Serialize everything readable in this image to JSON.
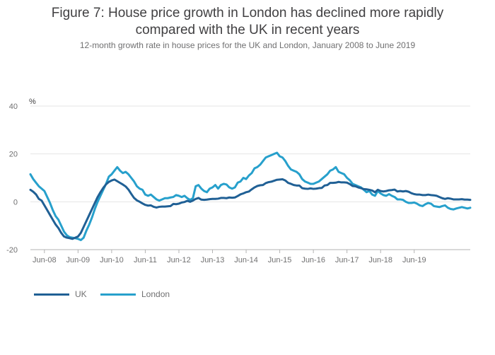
{
  "title_line1": "Figure 7: House price growth in London has declined more rapidly",
  "title_line2": "compared with the UK in recent years",
  "subtitle": "12-month growth rate in house prices for the UK and London, January 2008 to June 2019",
  "chart_data": {
    "type": "line",
    "title": "Figure 7: House price growth in London has declined more rapidly compared with the UK in recent years",
    "subtitle": "12-month growth rate in house prices for the UK and London, January 2008 to June 2019",
    "ylabel": "%",
    "xlabel": "",
    "ylim": [
      -20,
      40
    ],
    "yticks": [
      -20,
      0,
      20,
      40
    ],
    "x_start": "2008-01",
    "x_end": "2019-06",
    "xtick_labels": [
      "Jun-08",
      "Jun-09",
      "Jun-10",
      "Jun-11",
      "Jun-12",
      "Jun-13",
      "Jun-14",
      "Jun-15",
      "Jun-16",
      "Jun-17",
      "Jun-18",
      "Jun-19"
    ],
    "grid": "horizontal",
    "legend_position": "bottom-left",
    "series": [
      {
        "name": "UK",
        "color": "#206095",
        "values": [
          5.0,
          4.2,
          3.1,
          1.2,
          0.5,
          -1.5,
          -3.5,
          -5.5,
          -7.5,
          -9.5,
          -11.0,
          -13.0,
          -14.5,
          -15.0,
          -15.2,
          -15.5,
          -15.0,
          -14.5,
          -13.0,
          -10.5,
          -8.0,
          -5.5,
          -3.0,
          -0.5,
          2.0,
          4.0,
          5.8,
          7.3,
          8.3,
          8.9,
          9.3,
          8.6,
          7.9,
          7.2,
          6.4,
          5.1,
          3.3,
          1.6,
          0.6,
          0.0,
          -0.7,
          -1.3,
          -1.6,
          -1.5,
          -2.1,
          -2.4,
          -2.1,
          -2.0,
          -2.0,
          -1.9,
          -1.8,
          -0.9,
          -1.0,
          -0.8,
          -0.3,
          -0.1,
          0.4,
          0.0,
          0.5,
          1.2,
          1.6,
          0.9,
          0.8,
          0.9,
          1.1,
          1.2,
          1.2,
          1.3,
          1.6,
          1.6,
          1.5,
          1.8,
          1.7,
          1.8,
          2.4,
          3.1,
          3.5,
          4.0,
          4.3,
          5.2,
          6.0,
          6.6,
          6.9,
          7.0,
          7.8,
          8.2,
          8.4,
          8.8,
          9.2,
          9.3,
          9.4,
          8.9,
          7.9,
          7.5,
          7.0,
          6.8,
          6.8,
          5.7,
          5.5,
          5.4,
          5.6,
          5.4,
          5.5,
          5.7,
          5.8,
          6.8,
          7.0,
          7.9,
          7.9,
          8.0,
          8.3,
          8.1,
          8.1,
          8.0,
          7.4,
          6.6,
          6.5,
          6.0,
          5.7,
          5.3,
          5.2,
          5.0,
          4.7,
          4.0,
          5.0,
          4.5,
          4.3,
          4.5,
          4.8,
          4.9,
          5.1,
          4.3,
          4.5,
          4.3,
          4.5,
          4.2,
          3.6,
          3.2,
          3.0,
          3.0,
          2.8,
          2.8,
          3.0,
          2.8,
          2.7,
          2.5,
          2.0,
          1.5,
          1.2,
          1.5,
          1.3,
          1.0,
          1.0,
          1.0,
          1.1,
          0.9,
          0.9,
          0.8
        ]
      },
      {
        "name": "London",
        "color": "#27a0cc",
        "values": [
          11.5,
          9.5,
          8.0,
          6.5,
          5.5,
          4.5,
          2.0,
          -0.5,
          -3.5,
          -6.0,
          -7.5,
          -10.0,
          -12.5,
          -14.0,
          -14.8,
          -15.0,
          -15.2,
          -15.5,
          -16.0,
          -15.0,
          -12.0,
          -9.5,
          -6.5,
          -3.0,
          0.0,
          2.5,
          5.0,
          7.5,
          10.5,
          11.5,
          13.0,
          14.5,
          13.0,
          12.0,
          12.5,
          11.5,
          10.0,
          8.5,
          6.5,
          5.5,
          5.0,
          3.0,
          2.5,
          3.0,
          2.0,
          1.0,
          0.5,
          1.0,
          1.5,
          1.5,
          1.8,
          2.0,
          2.8,
          2.5,
          2.0,
          2.5,
          1.5,
          0.8,
          1.5,
          6.5,
          7.0,
          5.5,
          4.5,
          4.0,
          5.5,
          6.0,
          7.0,
          5.5,
          7.0,
          7.5,
          7.2,
          6.0,
          5.5,
          6.0,
          8.0,
          8.5,
          10.0,
          9.5,
          11.0,
          12.0,
          14.0,
          14.5,
          15.5,
          17.0,
          18.5,
          19.0,
          19.5,
          20.0,
          20.5,
          19.0,
          18.5,
          17.0,
          15.0,
          13.5,
          13.0,
          12.5,
          11.5,
          9.5,
          8.5,
          8.0,
          7.5,
          7.5,
          8.0,
          8.5,
          9.5,
          10.5,
          11.5,
          13.0,
          13.5,
          14.5,
          12.5,
          12.0,
          11.5,
          10.0,
          9.0,
          7.5,
          7.0,
          6.5,
          6.0,
          5.0,
          4.0,
          4.5,
          3.0,
          2.5,
          4.5,
          3.5,
          2.8,
          2.5,
          3.2,
          2.5,
          2.0,
          1.0,
          1.0,
          0.8,
          0.0,
          -0.5,
          -0.5,
          -0.3,
          -0.8,
          -1.5,
          -1.8,
          -1.0,
          -0.5,
          -0.8,
          -1.8,
          -2.0,
          -2.2,
          -1.8,
          -1.5,
          -2.5,
          -3.0,
          -3.2,
          -2.8,
          -2.5,
          -2.2,
          -2.5,
          -2.8,
          -2.5
        ]
      }
    ]
  },
  "legend": {
    "uk_label": "UK",
    "london_label": "London"
  }
}
